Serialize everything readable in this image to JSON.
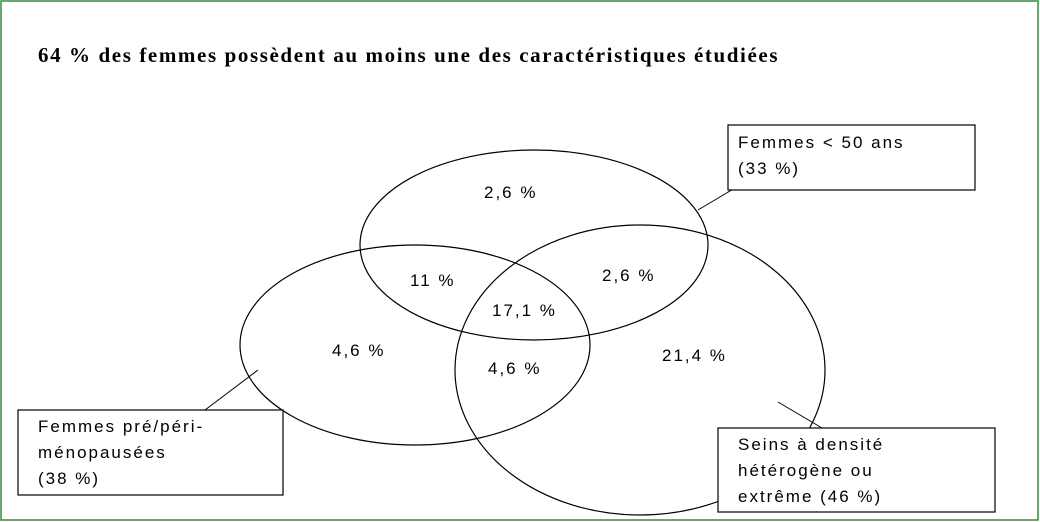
{
  "title": "64 % des femmes possèdent au moins une des caractéristiques étudiées",
  "sets": [
    {
      "label": [
        "Femmes < 50 ans",
        "(33 %)"
      ]
    },
    {
      "label": [
        "Femmes pré/péri-",
        "ménopausées",
        "(38 %)"
      ]
    },
    {
      "label": [
        "Seins à densité",
        "hétérogène ou",
        "extrême (46 %)"
      ]
    }
  ],
  "regions": [
    "2,6 %",
    "11 %",
    "2,6 %",
    "17,1 %",
    "4,6 %",
    "4,6 %",
    "21,4 %"
  ]
}
